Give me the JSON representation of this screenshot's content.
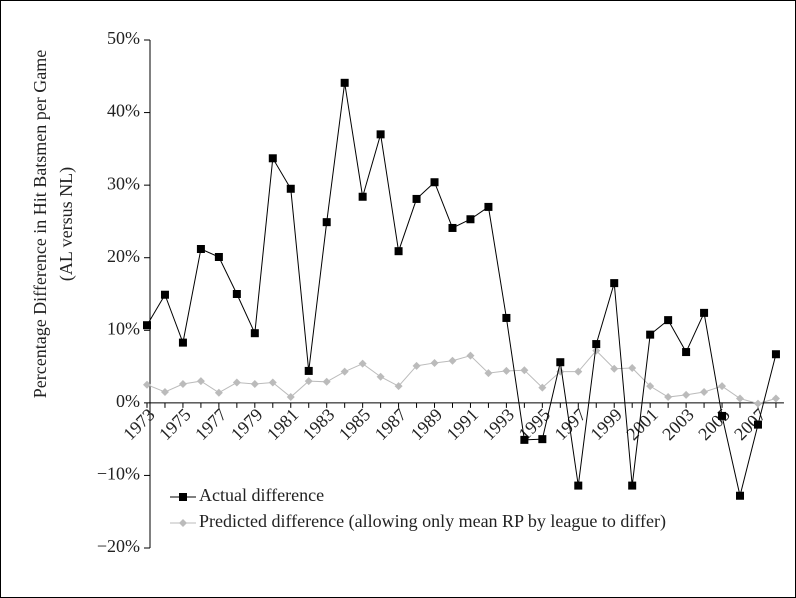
{
  "chart_data": {
    "type": "line",
    "y_label": [
      "Percentage Difference in Hit Batsmen per Game",
      "(AL versus NL)"
    ],
    "categories": [
      "1973",
      null,
      "1975",
      null,
      "1977",
      null,
      "1979",
      null,
      "1981",
      null,
      "1983",
      null,
      "1985",
      null,
      "1987",
      null,
      "1989",
      null,
      "1991",
      null,
      "1993",
      null,
      "1995",
      null,
      "1997",
      null,
      "1999",
      null,
      "2001",
      null,
      "2003",
      null,
      "2005",
      null,
      "2007",
      null
    ],
    "series": [
      {
        "name": "Actual difference",
        "color": "#000000",
        "marker": "square",
        "values": [
          10.7,
          14.9,
          8.3,
          21.2,
          20.1,
          15.0,
          9.6,
          33.7,
          29.5,
          4.4,
          24.9,
          44.1,
          28.4,
          37.0,
          20.9,
          28.1,
          30.4,
          24.1,
          25.3,
          27.0,
          11.7,
          -5.1,
          -5.0,
          5.6,
          -11.4,
          8.1,
          16.5,
          -11.4,
          9.4,
          11.4,
          7.0,
          12.4,
          -1.8,
          -12.8,
          -3.0,
          6.7
        ]
      },
      {
        "name": "Predicted difference (allowing only mean RP by league to differ)",
        "color": "#bbbbbb",
        "marker": "diamond",
        "values": [
          2.5,
          1.5,
          2.6,
          3.0,
          1.4,
          2.8,
          2.6,
          2.8,
          0.8,
          3.0,
          2.9,
          4.3,
          5.4,
          3.6,
          2.3,
          5.1,
          5.5,
          5.8,
          6.5,
          4.1,
          4.4,
          4.5,
          2.1,
          4.3,
          4.3,
          7.2,
          4.7,
          4.8,
          2.3,
          0.8,
          1.1,
          1.5,
          2.3,
          0.6,
          -0.1,
          0.6
        ]
      }
    ],
    "ylim": [
      -20,
      50
    ],
    "yticks": [
      {
        "value": -20,
        "label": "−20%"
      },
      {
        "value": -10,
        "label": "−10%"
      },
      {
        "value": 0,
        "label": "0%"
      },
      {
        "value": 10,
        "label": "10%"
      },
      {
        "value": 20,
        "label": "20%"
      },
      {
        "value": 30,
        "label": "30%"
      },
      {
        "value": 40,
        "label": "40%"
      },
      {
        "value": 50,
        "label": "50%"
      }
    ],
    "legend": "lower left"
  }
}
